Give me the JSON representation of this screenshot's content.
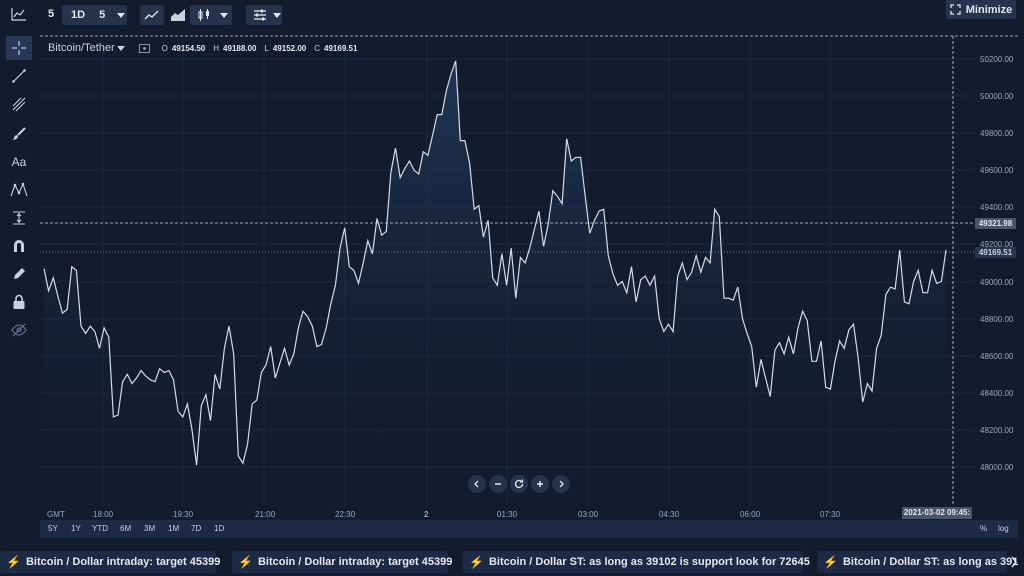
{
  "toolbar": {
    "interval": "5",
    "range": "1D",
    "range_interval": "5",
    "minimize_label": "Minimize"
  },
  "legend": {
    "symbol": "Bitcoin/Tether",
    "o_label": "O",
    "o": "49154.50",
    "h_label": "H",
    "h": "49188.00",
    "l_label": "L",
    "l": "49152.00",
    "c_label": "C",
    "c": "49169.51"
  },
  "crosshair_price": "49321.98",
  "last_price": "49169.51",
  "date_tag": "2021-03-02 09:45:",
  "y_axis": [
    "50200.00",
    "50000.00",
    "49800.00",
    "49600.00",
    "49400.00",
    "49200.00",
    "49000.00",
    "48800.00",
    "48600.00",
    "48400.00",
    "48200.00",
    "48000.00"
  ],
  "x_axis": [
    "GMT",
    "18:00",
    "19:30",
    "21:00",
    "22:30",
    "2",
    "01:30",
    "03:00",
    "04:30",
    "06:00",
    "07:30"
  ],
  "ranges": [
    "5Y",
    "1Y",
    "YTD",
    "6M",
    "3M",
    "1M",
    "7D",
    "1D"
  ],
  "scale_options": [
    "%",
    "log"
  ],
  "ticker": [
    "Bitcoin / Dollar intraday: target 45399",
    "Bitcoin / Dollar intraday: target 45399",
    "Bitcoin / Dollar ST: as long as 39102 is support look for 72645",
    "Bitcoin / Dollar ST: as long as 391"
  ],
  "colors": {
    "line": "#d6dbe6",
    "bg": "#131c2e",
    "accent": "#f2a93b"
  },
  "chart_data": {
    "type": "area",
    "title": "Bitcoin/Tether",
    "ylim": [
      47880,
      50340
    ],
    "xlabel": "",
    "ylabel": "",
    "values": [
      49070,
      48950,
      49020,
      48920,
      48830,
      48850,
      49080,
      49060,
      48760,
      48720,
      48760,
      48730,
      48640,
      48750,
      48700,
      48270,
      48280,
      48460,
      48500,
      48450,
      48480,
      48520,
      48490,
      48470,
      48460,
      48530,
      48510,
      48520,
      48470,
      48300,
      48270,
      48340,
      48200,
      48010,
      48330,
      48390,
      48250,
      48500,
      48420,
      48640,
      48760,
      48610,
      48060,
      48020,
      48120,
      48340,
      48360,
      48510,
      48550,
      48650,
      48480,
      48560,
      48640,
      48550,
      48610,
      48750,
      48840,
      48810,
      48760,
      48650,
      48660,
      48750,
      48880,
      48980,
      49180,
      49290,
      49080,
      49060,
      48990,
      49100,
      49220,
      49150,
      49340,
      49250,
      49270,
      49590,
      49720,
      49560,
      49610,
      49650,
      49600,
      49580,
      49700,
      49680,
      49790,
      49900,
      49900,
      50030,
      50120,
      50190,
      49760,
      49760,
      49640,
      49390,
      49410,
      49240,
      49330,
      49020,
      48980,
      49150,
      48980,
      49180,
      48910,
      49130,
      49100,
      49180,
      49280,
      49380,
      49190,
      49310,
      49490,
      49460,
      49420,
      49770,
      49650,
      49670,
      49670,
      49460,
      49260,
      49330,
      49380,
      49390,
      49140,
      49040,
      48980,
      49000,
      48940,
      49080,
      48890,
      49010,
      49030,
      48980,
      49030,
      48800,
      48730,
      48770,
      48730,
      49030,
      49100,
      49010,
      49050,
      49140,
      49050,
      49130,
      49100,
      49390,
      49350,
      48910,
      48910,
      48900,
      48970,
      48800,
      48720,
      48650,
      48430,
      48580,
      48480,
      48380,
      48630,
      48670,
      48610,
      48700,
      48610,
      48750,
      48840,
      48790,
      48570,
      48570,
      48680,
      48430,
      48420,
      48570,
      48680,
      48640,
      48740,
      48770,
      48590,
      48350,
      48450,
      48410,
      48640,
      48710,
      48930,
      48970,
      48960,
      49170,
      48890,
      48880,
      49000,
      49060,
      48940,
      48940,
      49060,
      48990,
      49000,
      49170
    ]
  }
}
